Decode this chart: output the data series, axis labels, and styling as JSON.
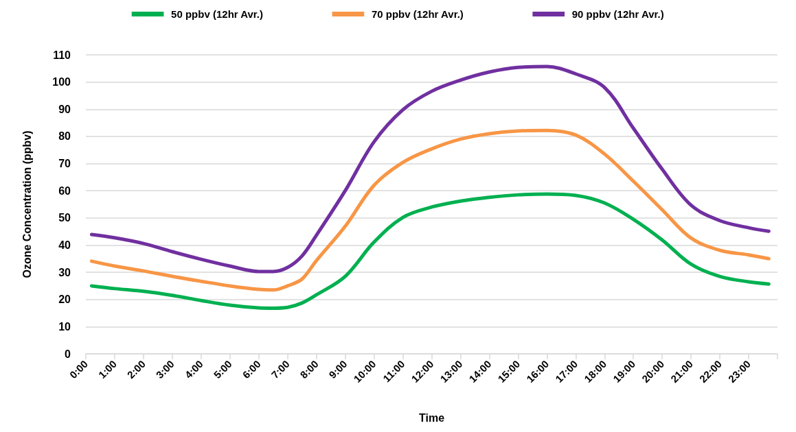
{
  "chart_data": {
    "type": "line",
    "xlabel": "Time",
    "ylabel": "Ozone Concentration (ppbv)",
    "x": [
      0.2,
      1,
      2,
      3,
      4,
      5,
      6,
      6.5,
      7,
      7.5,
      8,
      9,
      10,
      11,
      12,
      13,
      14,
      15,
      16,
      17,
      18,
      19,
      20,
      21,
      22,
      23,
      23.7
    ],
    "series": [
      {
        "name": "50 ppbv (12hr Avr.)",
        "color": "#00b050",
        "values": [
          25,
          24,
          23,
          21.5,
          19.6,
          17.9,
          16.9,
          16.8,
          17.1,
          18.7,
          21.7,
          28.5,
          41.1,
          50.2,
          54,
          56.2,
          57.6,
          58.5,
          58.8,
          58.3,
          55.5,
          49.5,
          41.9,
          33,
          28.5,
          26.5,
          25.7
        ]
      },
      {
        "name": "70 ppbv (12hr Avr.)",
        "color": "#f79646",
        "values": [
          34.1,
          32.3,
          30.5,
          28.5,
          26.7,
          25,
          23.7,
          23.5,
          25,
          27.5,
          34.3,
          46.9,
          62,
          70.4,
          75.4,
          79,
          81,
          82,
          82.2,
          80.5,
          73.5,
          63.5,
          53,
          42.6,
          38.1,
          36.4,
          35
        ]
      },
      {
        "name": "90 ppbv (12hr Avr.)",
        "color": "#7030a0",
        "values": [
          43.9,
          42.7,
          40.6,
          37.6,
          34.8,
          32.3,
          30.3,
          30.3,
          31.8,
          36,
          43.6,
          60,
          78,
          89.8,
          96.6,
          100.7,
          103.7,
          105.4,
          105.7,
          103,
          98,
          83,
          67.9,
          54.7,
          49,
          46.4,
          45.1
        ]
      }
    ],
    "xlim": [
      0,
      24
    ],
    "xticks": [
      {
        "value": 0,
        "label": "0:00"
      },
      {
        "value": 1,
        "label": "1:00"
      },
      {
        "value": 2,
        "label": "2:00"
      },
      {
        "value": 3,
        "label": "3:00"
      },
      {
        "value": 4,
        "label": "4:00"
      },
      {
        "value": 5,
        "label": "5:00"
      },
      {
        "value": 6,
        "label": "6:00"
      },
      {
        "value": 7,
        "label": "7:00"
      },
      {
        "value": 8,
        "label": "8:00"
      },
      {
        "value": 9,
        "label": "9:00"
      },
      {
        "value": 10,
        "label": "10:00"
      },
      {
        "value": 11,
        "label": "11:00"
      },
      {
        "value": 12,
        "label": "12:00"
      },
      {
        "value": 13,
        "label": "13:00"
      },
      {
        "value": 14,
        "label": "14:00"
      },
      {
        "value": 15,
        "label": "15:00"
      },
      {
        "value": 16,
        "label": "16:00"
      },
      {
        "value": 17,
        "label": "17:00"
      },
      {
        "value": 18,
        "label": "18:00"
      },
      {
        "value": 19,
        "label": "19:00"
      },
      {
        "value": 20,
        "label": "20:00"
      },
      {
        "value": 21,
        "label": "21:00"
      },
      {
        "value": 22,
        "label": "22:00"
      },
      {
        "value": 23,
        "label": "23:00"
      },
      {
        "value": 24,
        "label": null
      }
    ],
    "ylim": [
      0,
      110
    ],
    "yticks": [
      0,
      10,
      20,
      30,
      40,
      50,
      60,
      70,
      80,
      90,
      100,
      110
    ],
    "grid": "y",
    "legend": "top",
    "marker": "none",
    "line_style": "solid"
  }
}
